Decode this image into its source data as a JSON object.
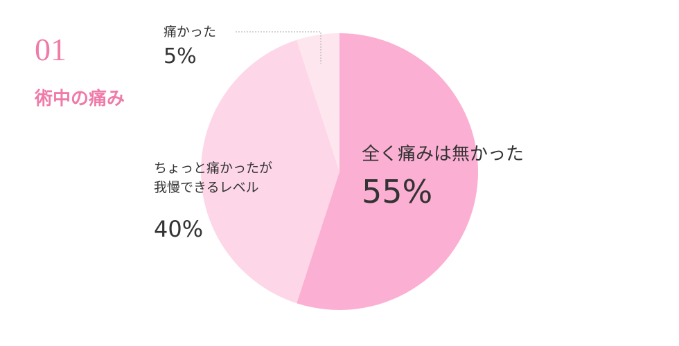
{
  "number": "01",
  "title": "術中の痛み",
  "chart_data": {
    "type": "pie",
    "categories": [
      "全く痛みは無かった",
      "ちょっと痛かったが\n我慢できるレベル",
      "痛かった"
    ],
    "values": [
      55,
      40,
      5
    ],
    "value_labels": [
      "55%",
      "40%",
      "5%"
    ],
    "colors": [
      "#fbb0d3",
      "#fdd7e8",
      "#fee6ef"
    ]
  }
}
